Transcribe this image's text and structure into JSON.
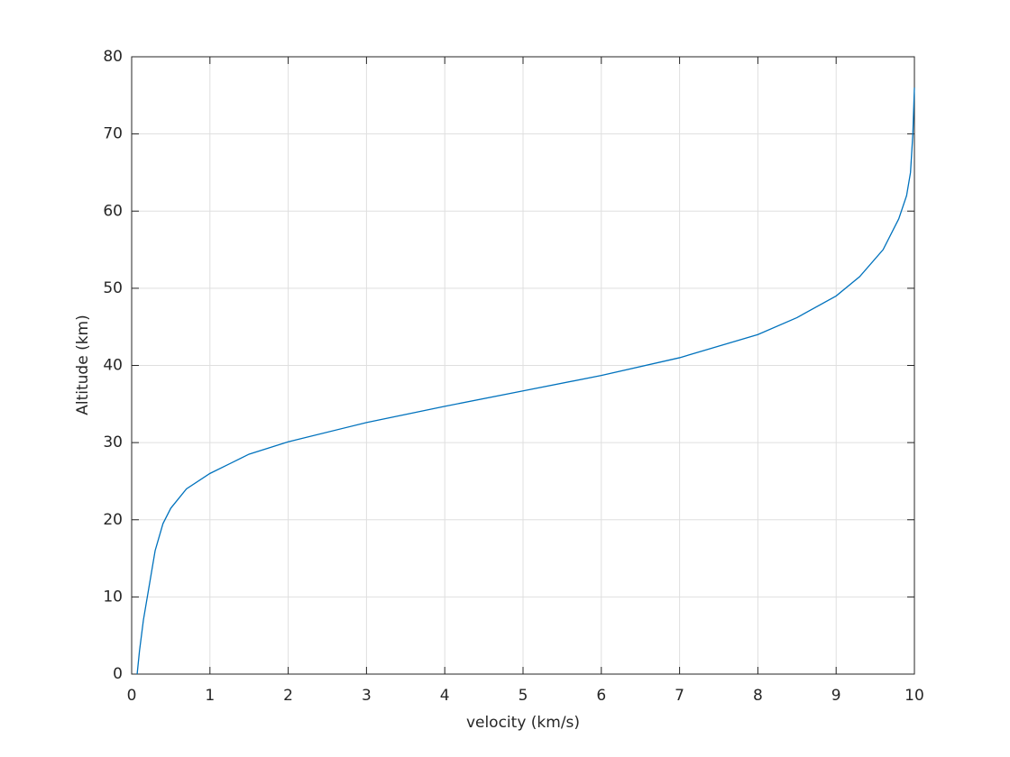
{
  "chart_data": {
    "type": "line",
    "xlabel": "velocity (km/s)",
    "ylabel": "Altitude (km)",
    "x": [
      0.07,
      0.1,
      0.15,
      0.2,
      0.3,
      0.4,
      0.5,
      0.7,
      1,
      1.5,
      2,
      3,
      4,
      5,
      6,
      7,
      8,
      8.5,
      9,
      9.3,
      9.6,
      9.8,
      9.9,
      9.95,
      9.98,
      10
    ],
    "values": [
      0,
      3,
      7,
      10,
      16,
      19.5,
      21.5,
      24,
      26,
      28.5,
      30.1,
      32.6,
      34.7,
      36.7,
      38.7,
      41,
      44,
      46.2,
      49,
      51.5,
      55,
      59,
      62,
      65,
      70,
      76
    ],
    "color": "#0072bd",
    "xlim": [
      0,
      10
    ],
    "xticks": [
      0,
      1,
      2,
      3,
      4,
      5,
      6,
      7,
      8,
      9,
      10
    ],
    "ylim": [
      0,
      80
    ],
    "yticks": [
      0,
      10,
      20,
      30,
      40,
      50,
      60,
      70,
      80
    ],
    "grid": true
  }
}
